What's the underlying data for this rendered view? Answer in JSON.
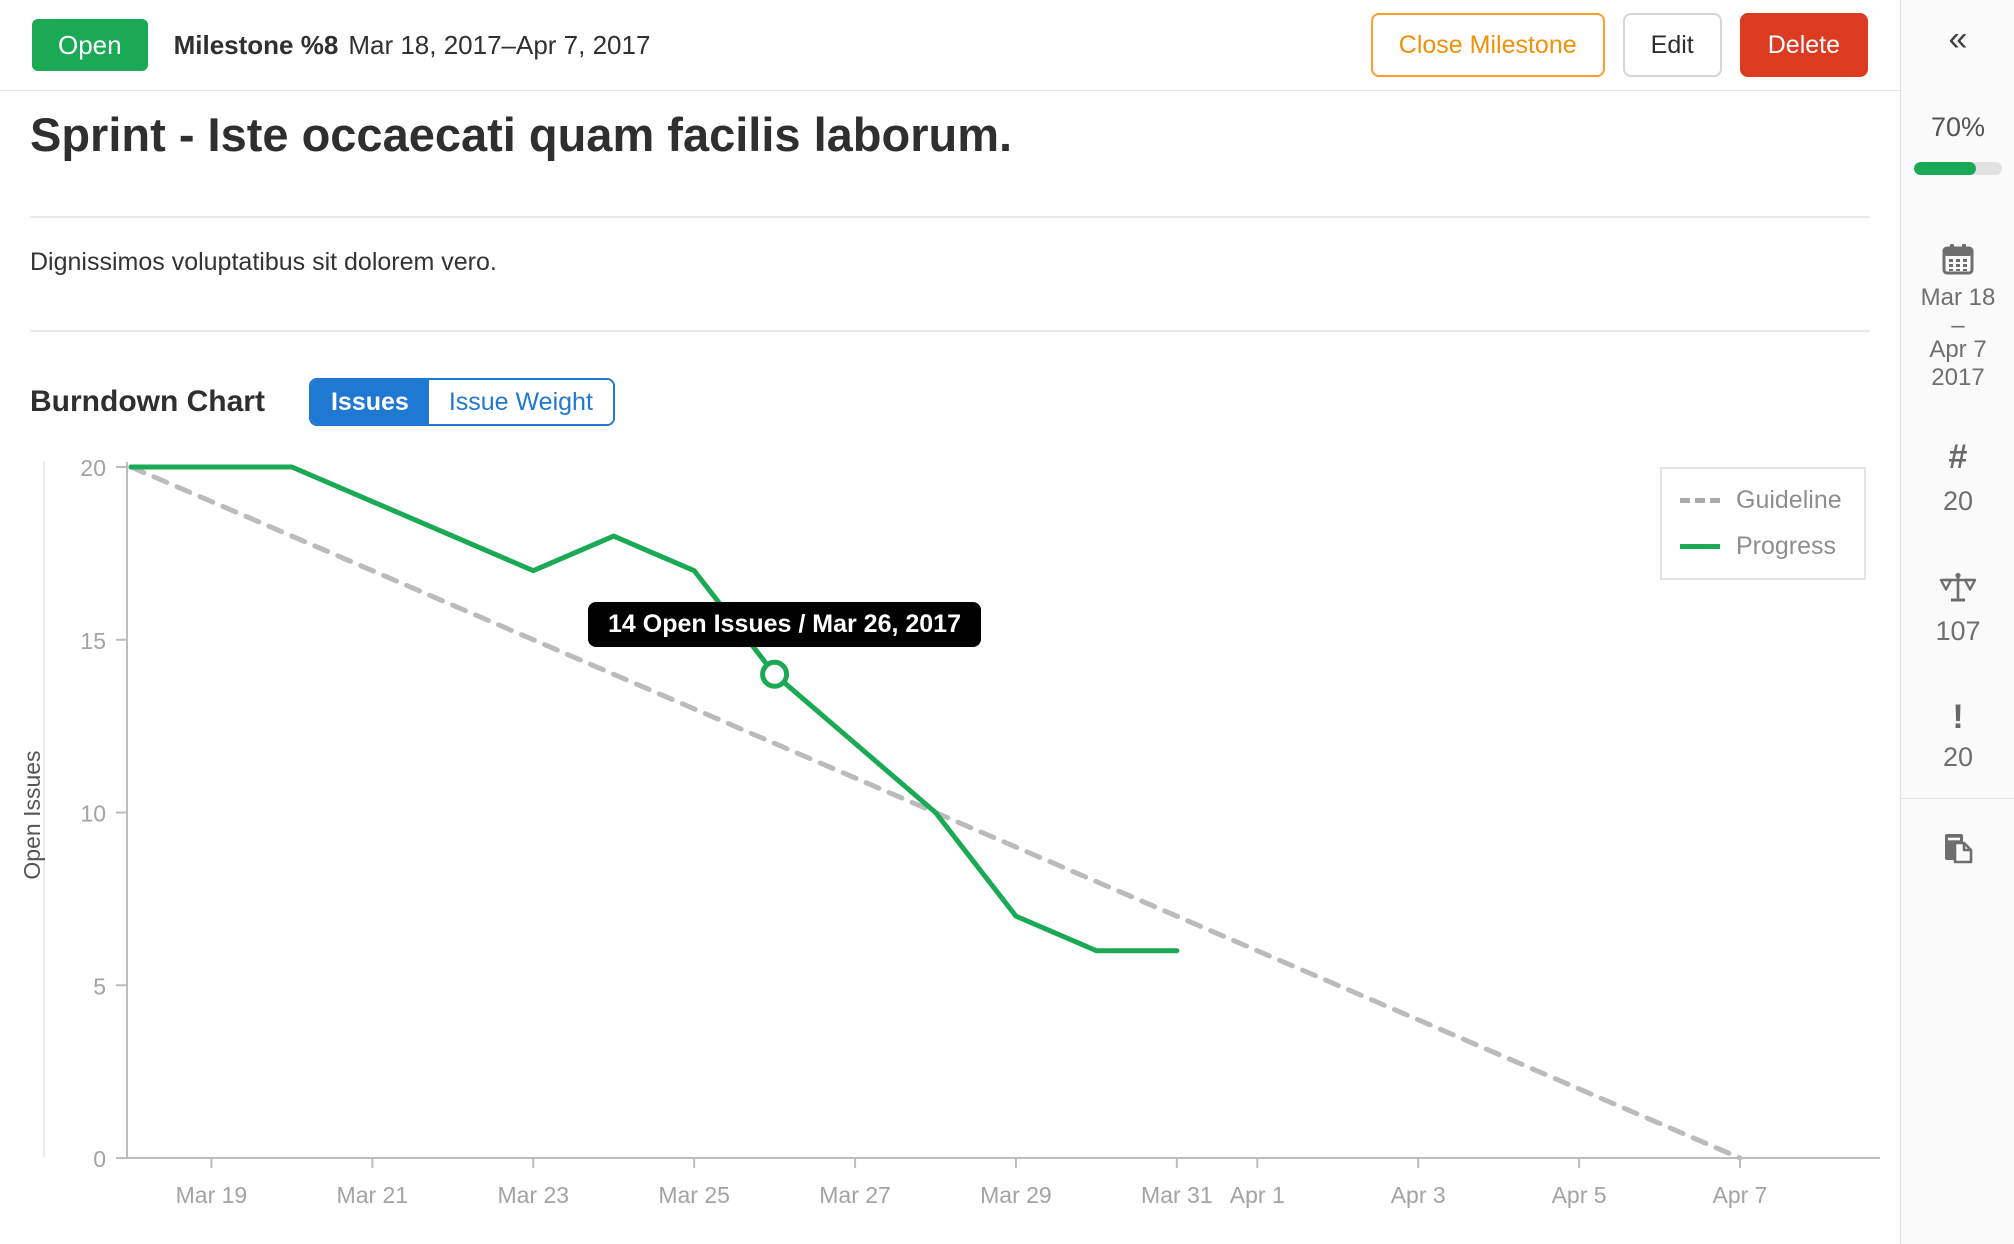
{
  "header": {
    "status": "Open",
    "title": "Milestone %8",
    "dates": "Mar 18, 2017–Apr 7, 2017",
    "close_button": "Close Milestone",
    "edit_button": "Edit",
    "delete_button": "Delete"
  },
  "milestone": {
    "title": "Sprint - Iste occaecati quam facilis laborum.",
    "description": "Dignissimos voluptatibus sit dolorem vero."
  },
  "burndown": {
    "title": "Burndown Chart",
    "toggle_issues": "Issues",
    "toggle_issue_weight": "Issue Weight",
    "active_toggle": "Issues"
  },
  "sidebar": {
    "collapse_glyph": "«",
    "percent": "70%",
    "percent_value": 70,
    "date_start": "Mar 18",
    "date_separator": "–",
    "date_end": "Apr 7",
    "date_year": "2017",
    "hash_glyph": "#",
    "issues_count": "20",
    "weight_total": "107",
    "exclamation_glyph": "!",
    "merge_requests_count": "20"
  },
  "colors": {
    "progress_green": "#1aaa55",
    "guideline_gray": "#bbbbbb",
    "accent_blue": "#1f78d1",
    "warning_orange": "#fc9403",
    "danger_red": "#db3b21"
  },
  "chart_data": {
    "type": "line",
    "title": "Burndown Chart",
    "xlabel": "",
    "ylabel": "Open Issues",
    "ylim": [
      0,
      20
    ],
    "yticks": [
      0,
      5,
      10,
      15,
      20
    ],
    "x_start": "Mar 18",
    "x_end": "Apr 7",
    "x_ticks": [
      "Mar 19",
      "Mar 21",
      "Mar 23",
      "Mar 25",
      "Mar 27",
      "Mar 29",
      "Mar 31",
      "Apr 1",
      "Apr 3",
      "Apr 5",
      "Apr 7"
    ],
    "grid": false,
    "legend_position": "top-right",
    "series": [
      {
        "name": "Guideline",
        "style": "dashed",
        "color": "#bbbbbb",
        "points": [
          {
            "date": "Mar 18",
            "value": 20
          },
          {
            "date": "Apr 7",
            "value": 0
          }
        ]
      },
      {
        "name": "Progress",
        "style": "solid",
        "color": "#1aaa55",
        "points": [
          {
            "date": "Mar 18",
            "value": 20
          },
          {
            "date": "Mar 19",
            "value": 20
          },
          {
            "date": "Mar 20",
            "value": 20
          },
          {
            "date": "Mar 21",
            "value": 19
          },
          {
            "date": "Mar 22",
            "value": 18
          },
          {
            "date": "Mar 23",
            "value": 17
          },
          {
            "date": "Mar 24",
            "value": 18
          },
          {
            "date": "Mar 25",
            "value": 17
          },
          {
            "date": "Mar 26",
            "value": 14
          },
          {
            "date": "Mar 27",
            "value": 12
          },
          {
            "date": "Mar 28",
            "value": 10
          },
          {
            "date": "Mar 29",
            "value": 7
          },
          {
            "date": "Mar 30",
            "value": 6
          },
          {
            "date": "Mar 31",
            "value": 6
          }
        ]
      }
    ],
    "highlight": {
      "date": "Mar 26",
      "value": 14,
      "tooltip": "14 Open Issues / Mar 26, 2017"
    }
  }
}
